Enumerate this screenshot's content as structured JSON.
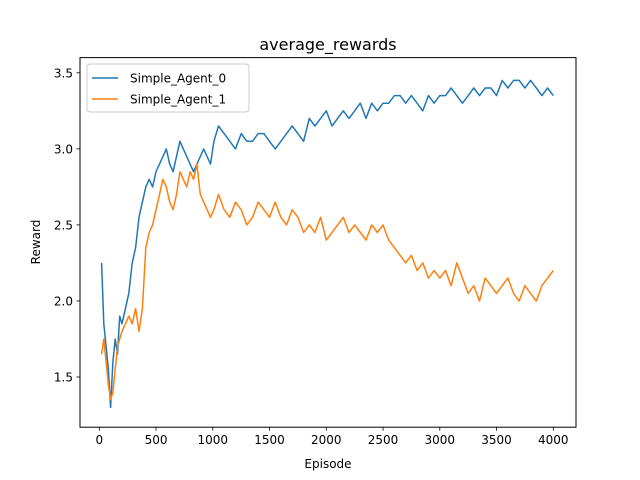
{
  "chart_data": {
    "type": "line",
    "title": "average_rewards",
    "xlabel": "Episode",
    "ylabel": "Reward",
    "xlim": [
      -170,
      4200
    ],
    "ylim": [
      1.17,
      3.6
    ],
    "xticks": [
      0,
      500,
      1000,
      1500,
      2000,
      2500,
      3000,
      3500,
      4000
    ],
    "yticks": [
      1.5,
      2.0,
      2.5,
      3.0,
      3.5
    ],
    "ytick_labels": [
      "1.5",
      "2.0",
      "2.5",
      "3.0",
      "3.5"
    ],
    "legend_position": "upper-left",
    "grid": false,
    "series": [
      {
        "name": "Simple_Agent_0",
        "color": "#1f77b4",
        "x": [
          20,
          40,
          60,
          80,
          100,
          120,
          140,
          160,
          180,
          200,
          230,
          260,
          290,
          320,
          350,
          380,
          410,
          440,
          470,
          500,
          530,
          560,
          590,
          620,
          650,
          680,
          710,
          740,
          770,
          800,
          830,
          860,
          890,
          920,
          950,
          980,
          1010,
          1050,
          1100,
          1150,
          1200,
          1250,
          1300,
          1350,
          1400,
          1450,
          1500,
          1550,
          1600,
          1650,
          1700,
          1750,
          1800,
          1850,
          1900,
          1950,
          2000,
          2050,
          2100,
          2150,
          2200,
          2250,
          2300,
          2350,
          2400,
          2450,
          2500,
          2550,
          2600,
          2650,
          2700,
          2750,
          2800,
          2850,
          2900,
          2950,
          3000,
          3050,
          3100,
          3150,
          3200,
          3250,
          3300,
          3350,
          3400,
          3450,
          3500,
          3550,
          3600,
          3650,
          3700,
          3750,
          3800,
          3850,
          3900,
          3950,
          4000
        ],
        "y": [
          2.25,
          1.85,
          1.7,
          1.55,
          1.3,
          1.6,
          1.75,
          1.65,
          1.9,
          1.85,
          1.95,
          2.05,
          2.25,
          2.35,
          2.55,
          2.65,
          2.75,
          2.8,
          2.75,
          2.85,
          2.9,
          2.95,
          3.0,
          2.9,
          2.85,
          2.95,
          3.05,
          3.0,
          2.95,
          2.9,
          2.85,
          2.9,
          2.95,
          3.0,
          2.95,
          2.9,
          3.05,
          3.15,
          3.1,
          3.05,
          3.0,
          3.1,
          3.05,
          3.05,
          3.1,
          3.1,
          3.05,
          3.0,
          3.05,
          3.1,
          3.15,
          3.1,
          3.05,
          3.2,
          3.15,
          3.2,
          3.25,
          3.15,
          3.2,
          3.25,
          3.2,
          3.25,
          3.3,
          3.2,
          3.3,
          3.25,
          3.3,
          3.3,
          3.35,
          3.35,
          3.3,
          3.35,
          3.3,
          3.25,
          3.35,
          3.3,
          3.35,
          3.35,
          3.4,
          3.35,
          3.3,
          3.35,
          3.4,
          3.35,
          3.4,
          3.4,
          3.35,
          3.45,
          3.4,
          3.45,
          3.45,
          3.4,
          3.45,
          3.4,
          3.35,
          3.4,
          3.35
        ]
      },
      {
        "name": "Simple_Agent_1",
        "color": "#ff7f0e",
        "x": [
          20,
          40,
          60,
          80,
          100,
          120,
          140,
          160,
          180,
          200,
          230,
          260,
          290,
          320,
          350,
          380,
          410,
          440,
          470,
          500,
          530,
          560,
          590,
          620,
          650,
          680,
          710,
          740,
          770,
          800,
          830,
          860,
          890,
          920,
          950,
          980,
          1010,
          1050,
          1100,
          1150,
          1200,
          1250,
          1300,
          1350,
          1400,
          1450,
          1500,
          1550,
          1600,
          1650,
          1700,
          1750,
          1800,
          1850,
          1900,
          1950,
          2000,
          2050,
          2100,
          2150,
          2200,
          2250,
          2300,
          2350,
          2400,
          2450,
          2500,
          2550,
          2600,
          2650,
          2700,
          2750,
          2800,
          2850,
          2900,
          2950,
          3000,
          3050,
          3100,
          3150,
          3200,
          3250,
          3300,
          3350,
          3400,
          3450,
          3500,
          3550,
          3600,
          3650,
          3700,
          3750,
          3800,
          3850,
          3900,
          3950,
          4000
        ],
        "y": [
          1.65,
          1.75,
          1.6,
          1.45,
          1.35,
          1.4,
          1.55,
          1.7,
          1.75,
          1.8,
          1.85,
          1.9,
          1.85,
          1.95,
          1.8,
          1.95,
          2.35,
          2.45,
          2.5,
          2.6,
          2.7,
          2.8,
          2.75,
          2.65,
          2.6,
          2.7,
          2.85,
          2.8,
          2.75,
          2.85,
          2.8,
          2.9,
          2.7,
          2.65,
          2.6,
          2.55,
          2.6,
          2.7,
          2.6,
          2.55,
          2.65,
          2.6,
          2.5,
          2.55,
          2.65,
          2.6,
          2.55,
          2.65,
          2.55,
          2.5,
          2.6,
          2.55,
          2.45,
          2.5,
          2.45,
          2.55,
          2.4,
          2.45,
          2.5,
          2.55,
          2.45,
          2.5,
          2.45,
          2.4,
          2.5,
          2.45,
          2.5,
          2.4,
          2.35,
          2.3,
          2.25,
          2.3,
          2.2,
          2.25,
          2.15,
          2.2,
          2.15,
          2.2,
          2.1,
          2.25,
          2.15,
          2.05,
          2.1,
          2.0,
          2.15,
          2.1,
          2.05,
          2.1,
          2.15,
          2.05,
          2.0,
          2.1,
          2.05,
          2.0,
          2.1,
          2.15,
          2.2
        ]
      }
    ]
  }
}
